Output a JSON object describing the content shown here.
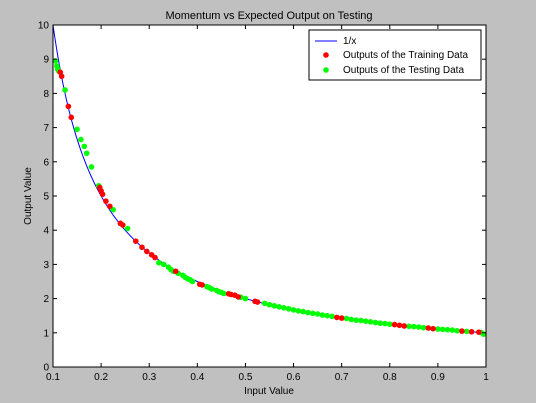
{
  "chart_data": {
    "type": "scatter",
    "title": "Momentum vs Expected Output on Testing",
    "xlabel": "Input Value",
    "ylabel": "Output Value",
    "xlim": [
      0.1,
      1
    ],
    "ylim": [
      0,
      10
    ],
    "xticks": [
      0.1,
      0.2,
      0.3,
      0.4,
      0.5,
      0.6,
      0.7,
      0.8,
      0.9,
      1
    ],
    "yticks": [
      0,
      1,
      2,
      3,
      4,
      5,
      6,
      7,
      8,
      9,
      10
    ],
    "grid": false,
    "legend_position": "top-right",
    "curve": {
      "name": "1/x",
      "color": "#0000ff"
    },
    "series": [
      {
        "name": "Outputs of the Training Data",
        "color": "#ff0000",
        "x": [
          0.115,
          0.118,
          0.132,
          0.138,
          0.197,
          0.2,
          0.203,
          0.21,
          0.218,
          0.24,
          0.245,
          0.272,
          0.285,
          0.295,
          0.305,
          0.312,
          0.355,
          0.405,
          0.41,
          0.465,
          0.47,
          0.478,
          0.485,
          0.52,
          0.525,
          0.69,
          0.7,
          0.81,
          0.82,
          0.83,
          0.88,
          0.89,
          0.95,
          0.97,
          0.985
        ],
        "y": [
          8.62,
          8.5,
          7.62,
          7.3,
          5.25,
          5.15,
          5.05,
          4.85,
          4.7,
          4.2,
          4.15,
          3.68,
          3.5,
          3.38,
          3.28,
          3.2,
          2.8,
          2.42,
          2.4,
          2.14,
          2.12,
          2.1,
          2.05,
          1.92,
          1.9,
          1.45,
          1.43,
          1.24,
          1.22,
          1.2,
          1.14,
          1.12,
          1.05,
          1.03,
          1.02
        ]
      },
      {
        "name": "Outputs of the Testing Data",
        "color": "#00ff00",
        "x": [
          0.105,
          0.108,
          0.11,
          0.112,
          0.125,
          0.15,
          0.158,
          0.165,
          0.17,
          0.18,
          0.195,
          0.225,
          0.255,
          0.32,
          0.33,
          0.34,
          0.345,
          0.35,
          0.36,
          0.37,
          0.375,
          0.38,
          0.385,
          0.39,
          0.42,
          0.425,
          0.43,
          0.44,
          0.445,
          0.45,
          0.455,
          0.49,
          0.5,
          0.54,
          0.55,
          0.56,
          0.57,
          0.58,
          0.59,
          0.6,
          0.61,
          0.62,
          0.63,
          0.64,
          0.65,
          0.66,
          0.67,
          0.68,
          0.71,
          0.72,
          0.73,
          0.74,
          0.75,
          0.76,
          0.77,
          0.78,
          0.79,
          0.8,
          0.84,
          0.85,
          0.86,
          0.87,
          0.9,
          0.91,
          0.92,
          0.93,
          0.94,
          0.96,
          0.99,
          0.995
        ],
        "y": [
          8.95,
          8.8,
          8.7,
          8.65,
          8.1,
          6.95,
          6.65,
          6.45,
          6.25,
          5.85,
          5.3,
          4.6,
          4.05,
          3.05,
          3.0,
          2.92,
          2.85,
          2.8,
          2.74,
          2.68,
          2.62,
          2.58,
          2.55,
          2.5,
          2.35,
          2.32,
          2.28,
          2.24,
          2.2,
          2.18,
          2.15,
          2.04,
          2.0,
          1.86,
          1.82,
          1.79,
          1.76,
          1.73,
          1.7,
          1.67,
          1.64,
          1.62,
          1.59,
          1.57,
          1.55,
          1.52,
          1.5,
          1.48,
          1.42,
          1.39,
          1.37,
          1.36,
          1.34,
          1.32,
          1.3,
          1.28,
          1.27,
          1.25,
          1.19,
          1.18,
          1.17,
          1.15,
          1.11,
          1.1,
          1.09,
          1.08,
          1.06,
          1.04,
          1.01,
          0.96
        ]
      }
    ]
  }
}
